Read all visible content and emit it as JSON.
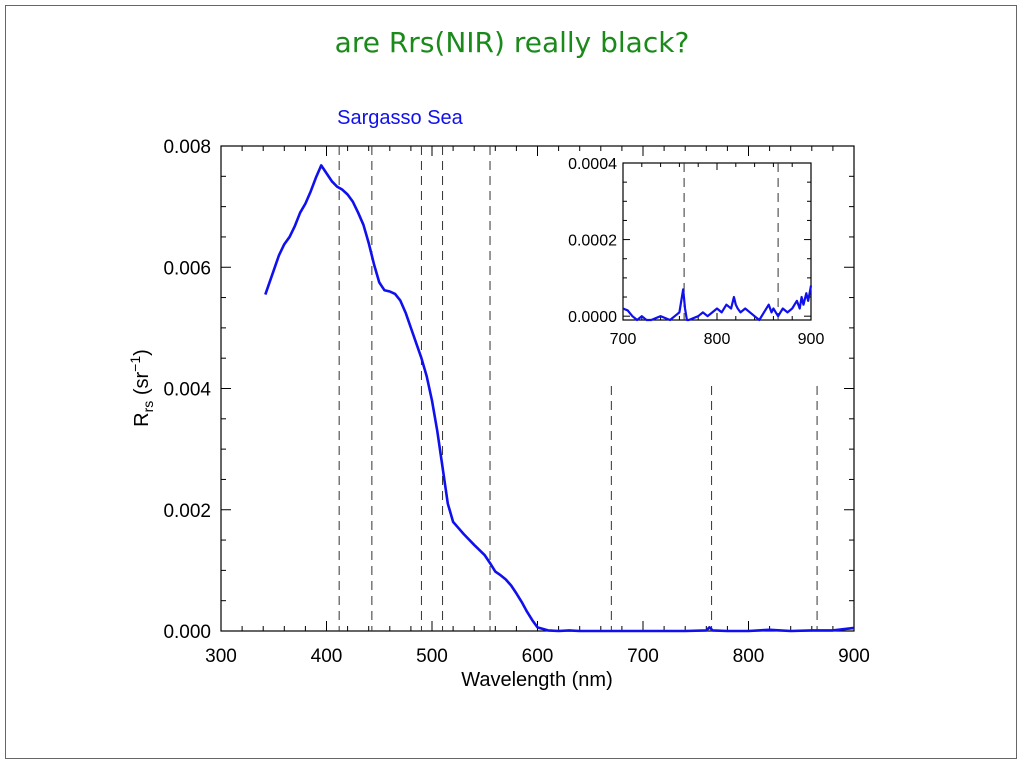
{
  "slide": {
    "title": "are Rrs(NIR) really black?"
  },
  "colors": {
    "title": "#1a8a1a",
    "series": "#1010ee",
    "axis": "#000000",
    "marker_lines": "#333333"
  },
  "chart_data": [
    {
      "type": "line",
      "title": "Sargasso Sea",
      "xlabel": "Wavelength (nm)",
      "ylabel": {
        "base": "R",
        "sub": "rs",
        "unit_open": " (sr",
        "sup": "−1",
        "unit_close": ")"
      },
      "xlim": [
        300,
        900
      ],
      "ylim": [
        0,
        0.008
      ],
      "xticks": [
        300,
        400,
        500,
        600,
        700,
        800,
        900
      ],
      "xtick_labels": [
        "300",
        "400",
        "500",
        "600",
        "700",
        "800",
        "900"
      ],
      "yticks": [
        0,
        0.002,
        0.004,
        0.006,
        0.008
      ],
      "ytick_labels": [
        "0.000",
        "0.002",
        "0.004",
        "0.006",
        "0.008"
      ],
      "grid": false,
      "vertical_markers": [
        412,
        443,
        490,
        510,
        555,
        670,
        765,
        865
      ],
      "series": [
        {
          "x": [
            342,
            345,
            350,
            355,
            360,
            365,
            370,
            375,
            380,
            385,
            390,
            393,
            395,
            400,
            405,
            410,
            415,
            420,
            425,
            430,
            435,
            440,
            445,
            450,
            455,
            460,
            465,
            470,
            475,
            480,
            485,
            490,
            495,
            500,
            505,
            510,
            515,
            520,
            525,
            530,
            540,
            550,
            555,
            560,
            565,
            570,
            575,
            580,
            585,
            590,
            595,
            600,
            610,
            620,
            630,
            640,
            650,
            660,
            670,
            680,
            690,
            700,
            720,
            740,
            760,
            763,
            766,
            780,
            800,
            820,
            840,
            860,
            880,
            890,
            900
          ],
          "y": [
            0.00555,
            0.0057,
            0.00595,
            0.0062,
            0.00638,
            0.0065,
            0.00668,
            0.0069,
            0.00705,
            0.00725,
            0.00748,
            0.0076,
            0.00768,
            0.00755,
            0.00742,
            0.00733,
            0.00728,
            0.0072,
            0.00708,
            0.0069,
            0.0067,
            0.0064,
            0.00605,
            0.00575,
            0.00562,
            0.0056,
            0.00556,
            0.00545,
            0.00525,
            0.005,
            0.00475,
            0.0045,
            0.0042,
            0.0038,
            0.0033,
            0.0027,
            0.0021,
            0.0018,
            0.0017,
            0.0016,
            0.00142,
            0.00125,
            0.00112,
            0.00098,
            0.00092,
            0.00085,
            0.00075,
            0.00062,
            0.00048,
            0.00032,
            0.00018,
            6e-05,
            1e-05,
            0.0,
            1e-05,
            0.0,
            -2e-05,
            -2e-05,
            -1e-05,
            -1e-05,
            0.0,
            -1e-05,
            0.0,
            -1e-05,
            1e-05,
            6e-05,
            1e-05,
            -1e-05,
            0.0,
            2e-05,
            -1e-05,
            1e-05,
            1e-05,
            3e-05,
            5e-05
          ]
        }
      ]
    },
    {
      "type": "line",
      "title": "",
      "xlim": [
        700,
        900
      ],
      "ylim": [
        -1e-05,
        0.0004
      ],
      "xticks": [
        700,
        800,
        900
      ],
      "xtick_labels": [
        "700",
        "800",
        "900"
      ],
      "yticks": [
        0,
        0.0002,
        0.0004
      ],
      "ytick_labels": [
        "0.0000",
        "0.0002",
        "0.0004"
      ],
      "grid": false,
      "vertical_markers": [
        765,
        865
      ],
      "series": [
        {
          "x": [
            700,
            705,
            710,
            715,
            720,
            725,
            730,
            740,
            750,
            755,
            760,
            762,
            764,
            766,
            768,
            770,
            780,
            785,
            790,
            795,
            800,
            805,
            810,
            815,
            818,
            820,
            822,
            825,
            830,
            840,
            845,
            850,
            855,
            858,
            860,
            865,
            870,
            875,
            880,
            885,
            888,
            890,
            892,
            895,
            897,
            900
          ],
          "y": [
            2e-05,
            1.5e-05,
            0.0,
            -1e-05,
            0.0,
            -1e-05,
            -1e-05,
            0.0,
            -1e-05,
            0.0,
            1e-05,
            4e-05,
            7e-05,
            2e-05,
            -1e-05,
            -1e-05,
            0.0,
            1e-05,
            0.0,
            1e-05,
            2e-05,
            1e-05,
            3e-05,
            2e-05,
            5e-05,
            3e-05,
            2e-05,
            1e-05,
            2e-05,
            0.0,
            -1e-05,
            1e-05,
            3e-05,
            1e-05,
            2e-05,
            0.0,
            2e-05,
            1e-05,
            2e-05,
            4e-05,
            2e-05,
            5e-05,
            3e-05,
            6e-05,
            4e-05,
            8e-05
          ]
        }
      ]
    }
  ]
}
